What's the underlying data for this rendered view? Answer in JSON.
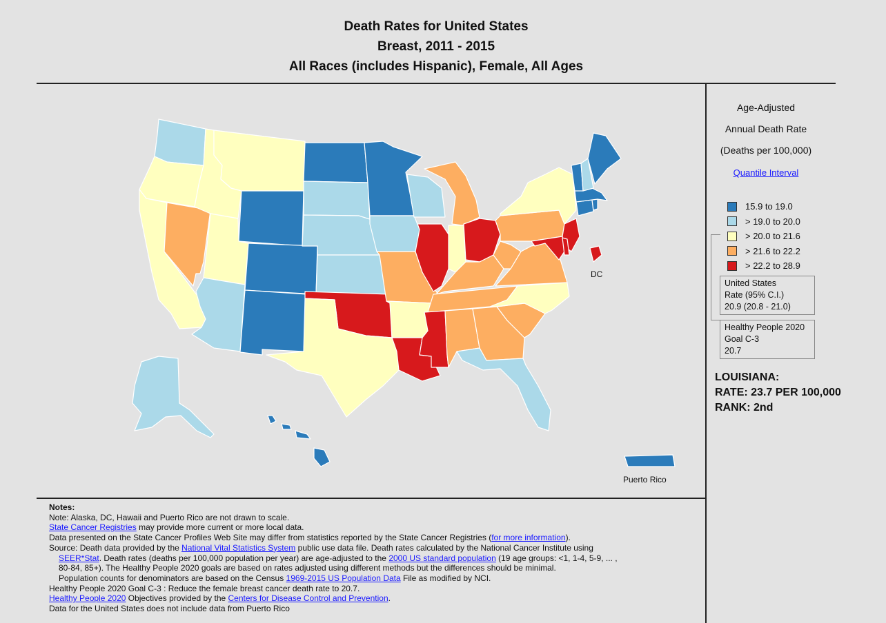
{
  "title": {
    "line1": "Death Rates for United States",
    "line2": "Breast, 2011 - 2015",
    "line3": "All Races (includes Hispanic), Female, All Ages"
  },
  "colors": {
    "q1": "#2b7bba",
    "q2": "#abd9e9",
    "q3": "#ffffbf",
    "q4": "#fdae61",
    "q5": "#d7191c",
    "border": "#ffffff",
    "background": "#e3e3e3"
  },
  "legend": {
    "heading1": "Age-Adjusted",
    "heading2": "Annual Death Rate",
    "heading3": "(Deaths per 100,000)",
    "method_link": "Quantile Interval",
    "items": [
      {
        "label": "15.9  to  19.0",
        "color": "#2b7bba"
      },
      {
        "label": "> 19.0  to  20.0",
        "color": "#abd9e9"
      },
      {
        "label": "> 20.0  to  21.6",
        "color": "#ffffbf"
      },
      {
        "label": "> 21.6  to  22.2",
        "color": "#fdae61"
      },
      {
        "label": "> 22.2  to  28.9",
        "color": "#d7191c"
      }
    ],
    "us_rate": {
      "line1": "United States",
      "line2": "Rate (95% C.I.)",
      "line3": "20.9  (20.8 - 21.0)"
    },
    "hp2020": {
      "line1": "Healthy People 2020",
      "line2": "Goal C-3",
      "line3": "20.7"
    }
  },
  "selected_state": {
    "name": "LOUISIANA:",
    "rate": "RATE: 23.7 PER 100,000",
    "rank": "RANK: 2nd"
  },
  "map": {
    "labels": {
      "dc": "DC",
      "puerto_rico": "Puerto Rico"
    },
    "states": {
      "WA": {
        "name": "Washington",
        "quantile": 2
      },
      "OR": {
        "name": "Oregon",
        "quantile": 3
      },
      "CA": {
        "name": "California",
        "quantile": 3
      },
      "NV": {
        "name": "Nevada",
        "quantile": 4
      },
      "ID": {
        "name": "Idaho",
        "quantile": 3
      },
      "MT": {
        "name": "Montana",
        "quantile": 3
      },
      "WY": {
        "name": "Wyoming",
        "quantile": 1
      },
      "UT": {
        "name": "Utah",
        "quantile": 3
      },
      "AZ": {
        "name": "Arizona",
        "quantile": 2
      },
      "CO": {
        "name": "Colorado",
        "quantile": 1
      },
      "NM": {
        "name": "New Mexico",
        "quantile": 1
      },
      "ND": {
        "name": "North Dakota",
        "quantile": 1
      },
      "SD": {
        "name": "South Dakota",
        "quantile": 2
      },
      "NE": {
        "name": "Nebraska",
        "quantile": 2
      },
      "KS": {
        "name": "Kansas",
        "quantile": 2
      },
      "OK": {
        "name": "Oklahoma",
        "quantile": 5
      },
      "TX": {
        "name": "Texas",
        "quantile": 3
      },
      "MN": {
        "name": "Minnesota",
        "quantile": 1
      },
      "IA": {
        "name": "Iowa",
        "quantile": 2
      },
      "MO": {
        "name": "Missouri",
        "quantile": 4
      },
      "AR": {
        "name": "Arkansas",
        "quantile": 3
      },
      "LA": {
        "name": "Louisiana",
        "quantile": 5
      },
      "WI": {
        "name": "Wisconsin",
        "quantile": 2
      },
      "IL": {
        "name": "Illinois",
        "quantile": 5
      },
      "MI": {
        "name": "Michigan",
        "quantile": 4
      },
      "IN": {
        "name": "Indiana",
        "quantile": 3
      },
      "OH": {
        "name": "Ohio",
        "quantile": 5
      },
      "KY": {
        "name": "Kentucky",
        "quantile": 4
      },
      "TN": {
        "name": "Tennessee",
        "quantile": 4
      },
      "MS": {
        "name": "Mississippi",
        "quantile": 5
      },
      "AL": {
        "name": "Alabama",
        "quantile": 4
      },
      "GA": {
        "name": "Georgia",
        "quantile": 4
      },
      "FL": {
        "name": "Florida",
        "quantile": 2
      },
      "SC": {
        "name": "South Carolina",
        "quantile": 4
      },
      "NC": {
        "name": "North Carolina",
        "quantile": 3
      },
      "VA": {
        "name": "Virginia",
        "quantile": 4
      },
      "WV": {
        "name": "West Virginia",
        "quantile": 4
      },
      "PA": {
        "name": "Pennsylvania",
        "quantile": 4
      },
      "NY": {
        "name": "New York",
        "quantile": 3
      },
      "NJ": {
        "name": "New Jersey",
        "quantile": 5
      },
      "DE": {
        "name": "Delaware",
        "quantile": 5
      },
      "MD": {
        "name": "Maryland",
        "quantile": 5
      },
      "DC": {
        "name": "District of Columbia",
        "quantile": 5
      },
      "CT": {
        "name": "Connecticut",
        "quantile": 1
      },
      "RI": {
        "name": "Rhode Island",
        "quantile": 1
      },
      "MA": {
        "name": "Massachusetts",
        "quantile": 1
      },
      "VT": {
        "name": "Vermont",
        "quantile": 1
      },
      "NH": {
        "name": "New Hampshire",
        "quantile": 2
      },
      "ME": {
        "name": "Maine",
        "quantile": 1
      },
      "AK": {
        "name": "Alaska",
        "quantile": 2
      },
      "HI": {
        "name": "Hawaii",
        "quantile": 1
      },
      "PR": {
        "name": "Puerto Rico",
        "quantile": 1
      }
    }
  },
  "notes": {
    "title": "Notes:",
    "l1": "Note: Alaska, DC, Hawaii and Puerto Rico are not drawn to scale.",
    "l2_link": "State Cancer Registries",
    "l2_text": " may provide more current or more local data.",
    "l3_text": "Data presented on the State Cancer Profiles Web Site may differ from statistics reported by the State Cancer Registries (",
    "l3_link": "for more information",
    "l3_end": ").",
    "l4_text": "Source: Death data provided by the ",
    "l4_link": "National Vital Statistics System",
    "l4_end": " public use data file. Death rates calculated by the National Cancer Institute using",
    "l5_link": "SEER*Stat",
    "l5_text": ". Death rates (deaths per 100,000 population per year) are age-adjusted to the ",
    "l5_link2": "2000 US standard population",
    "l5_end": " (19 age groups: <1, 1-4, 5-9, ... ,",
    "l6": "80-84, 85+). The Healthy People 2020 goals are based on rates adjusted using different methods but the differences should be minimal.",
    "l7_text": "Population counts for denominators are based on the Census ",
    "l7_link": "1969-2015 US Population Data",
    "l7_end": " File as modified by NCI.",
    "l8": "Healthy People 2020 Goal C-3 : Reduce the female breast cancer death rate to 20.7.",
    "l9_link": "Healthy People 2020",
    "l9_text": " Objectives provided by the ",
    "l9_link2": "Centers for Disease Control and Prevention",
    "l9_end": ".",
    "l10": "Data for the United States does not include data from Puerto Rico"
  }
}
